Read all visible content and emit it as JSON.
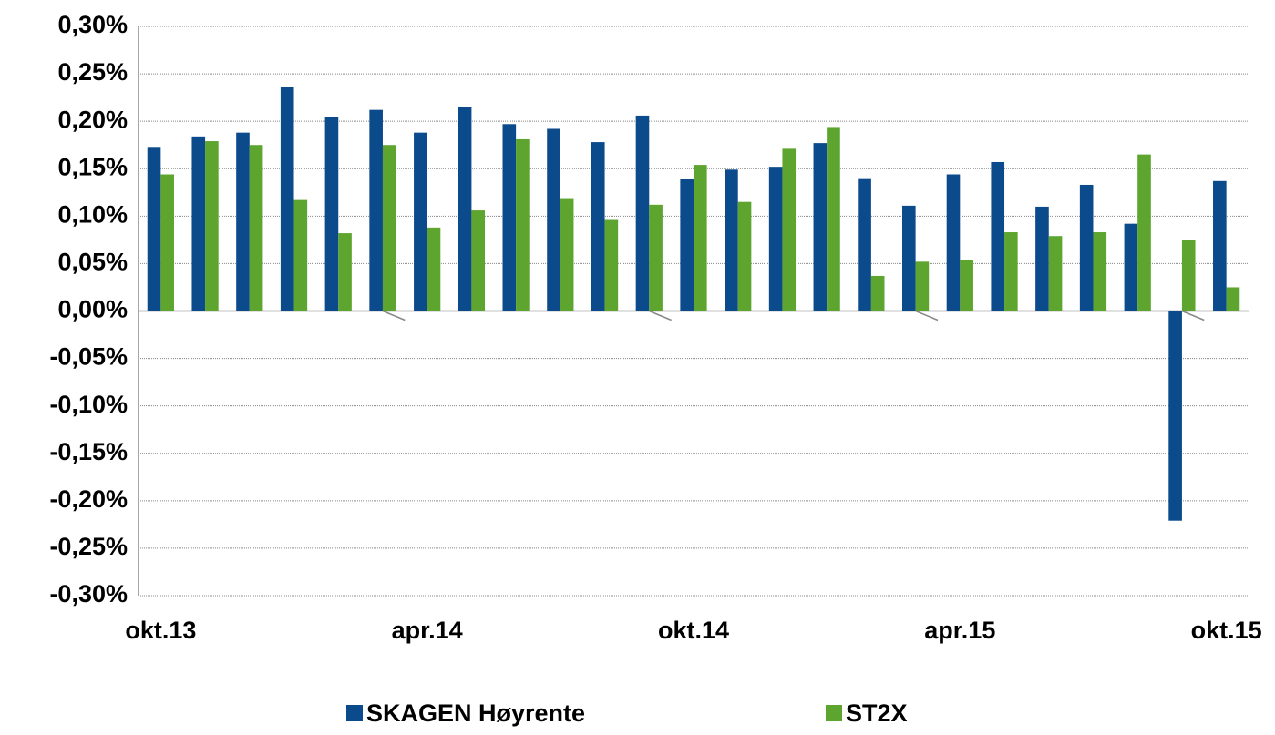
{
  "chart_data": {
    "type": "bar",
    "categories": [
      "okt.13",
      null,
      null,
      null,
      null,
      null,
      "apr.14",
      null,
      null,
      null,
      null,
      null,
      "okt.14",
      null,
      null,
      null,
      null,
      null,
      "apr.15",
      null,
      null,
      null,
      null,
      null,
      "okt.15"
    ],
    "series": [
      {
        "name": "SKAGEN Høyrente",
        "color": "#0b4a8b",
        "values": [
          0.173,
          0.184,
          0.188,
          0.236,
          0.204,
          0.212,
          0.188,
          0.215,
          0.197,
          0.192,
          0.178,
          0.206,
          0.139,
          0.149,
          0.152,
          0.177,
          0.14,
          0.111,
          0.144,
          0.157,
          0.11,
          0.133,
          0.092,
          -0.221,
          0.137
        ]
      },
      {
        "name": "ST2X",
        "color": "#5da52f",
        "values": [
          0.144,
          0.179,
          0.175,
          0.117,
          0.082,
          0.175,
          0.088,
          0.106,
          0.181,
          0.119,
          0.096,
          0.112,
          0.154,
          0.115,
          0.171,
          0.194,
          0.037,
          0.052,
          0.054,
          0.083,
          0.079,
          0.083,
          0.165,
          0.075,
          0.025
        ]
      }
    ],
    "ylim": [
      -0.3,
      0.3
    ],
    "yticks": [
      {
        "value": -0.3,
        "label": "-0,30%"
      },
      {
        "value": -0.25,
        "label": "-0,25%"
      },
      {
        "value": -0.2,
        "label": "-0,20%"
      },
      {
        "value": -0.15,
        "label": "-0,15%"
      },
      {
        "value": -0.1,
        "label": "-0,10%"
      },
      {
        "value": -0.05,
        "label": "-0,05%"
      },
      {
        "value": 0,
        "label": "0,00%"
      },
      {
        "value": 0.05,
        "label": "0,05%"
      },
      {
        "value": 0.1,
        "label": "0,10%"
      },
      {
        "value": 0.15,
        "label": "0,15%"
      },
      {
        "value": 0.2,
        "label": "0,20%"
      },
      {
        "value": 0.25,
        "label": "0,25%"
      },
      {
        "value": 0.3,
        "label": "0,30%"
      }
    ],
    "grid": true
  }
}
